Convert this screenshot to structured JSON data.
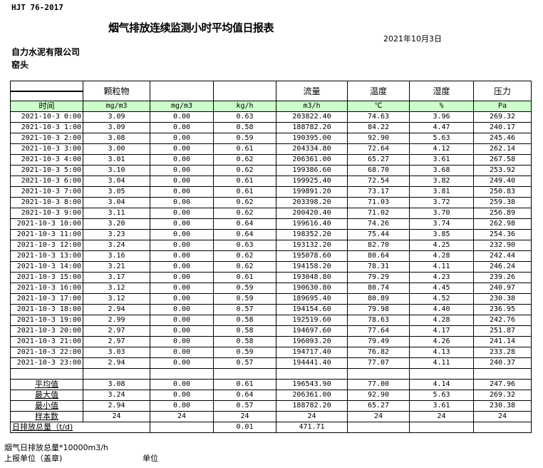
{
  "standard": "HJT  76-2017",
  "title": "烟气排放连续监测小时平均值日报表",
  "date": "2021年10月3日",
  "company": "自力水泥有限公司",
  "location": "窑头",
  "header": [
    "",
    "颗粒物",
    "",
    "",
    "流量",
    "温度",
    "湿度",
    "压力"
  ],
  "units": [
    "时间",
    "mg/m3",
    "mg/m3",
    "kg/h",
    "m3/h",
    "℃",
    "%",
    "Pa"
  ],
  "rows": [
    [
      "2021-10-3 0:00",
      "3.09",
      "0.00",
      "0.63",
      "203822.40",
      "74.63",
      "3.96",
      "269.32"
    ],
    [
      "2021-10-3 1:00",
      "3.09",
      "0.00",
      "0.58",
      "188782.20",
      "84.22",
      "4.47",
      "240.17"
    ],
    [
      "2021-10-3 2:00",
      "3.08",
      "0.00",
      "0.59",
      "190395.00",
      "92.90",
      "5.63",
      "245.46"
    ],
    [
      "2021-10-3 3:00",
      "3.00",
      "0.00",
      "0.61",
      "204334.80",
      "72.64",
      "4.12",
      "262.14"
    ],
    [
      "2021-10-3 4:00",
      "3.01",
      "0.00",
      "0.62",
      "206361.00",
      "65.27",
      "3.61",
      "267.58"
    ],
    [
      "2021-10-3 5:00",
      "3.10",
      "0.00",
      "0.62",
      "199386.60",
      "68.70",
      "3.68",
      "253.92"
    ],
    [
      "2021-10-3 6:00",
      "3.04",
      "0.00",
      "0.61",
      "199925.40",
      "72.54",
      "3.82",
      "249.40"
    ],
    [
      "2021-10-3 7:00",
      "3.05",
      "0.00",
      "0.61",
      "199891.20",
      "73.17",
      "3.81",
      "250.83"
    ],
    [
      "2021-10-3 8:00",
      "3.04",
      "0.00",
      "0.62",
      "203398.20",
      "71.03",
      "3.72",
      "259.38"
    ],
    [
      "2021-10-3 9:00",
      "3.11",
      "0.00",
      "0.62",
      "200420.40",
      "71.02",
      "3.70",
      "256.89"
    ],
    [
      "2021-10-3 10:00",
      "3.20",
      "0.00",
      "0.64",
      "199616.40",
      "74.26",
      "3.74",
      "262.98"
    ],
    [
      "2021-10-3 11:00",
      "3.23",
      "0.00",
      "0.64",
      "198352.20",
      "75.44",
      "3.85",
      "254.36"
    ],
    [
      "2021-10-3 12:00",
      "3.24",
      "0.00",
      "0.63",
      "193132.20",
      "82.70",
      "4.25",
      "232.90"
    ],
    [
      "2021-10-3 13:00",
      "3.16",
      "0.00",
      "0.62",
      "195078.60",
      "80.64",
      "4.28",
      "242.44"
    ],
    [
      "2021-10-3 14:00",
      "3.21",
      "0.00",
      "0.62",
      "194158.20",
      "78.31",
      "4.11",
      "246.24"
    ],
    [
      "2021-10-3 15:00",
      "3.17",
      "0.00",
      "0.61",
      "193048.80",
      "79.29",
      "4.23",
      "239.26"
    ],
    [
      "2021-10-3 16:00",
      "3.12",
      "0.00",
      "0.59",
      "190630.80",
      "80.74",
      "4.45",
      "240.97"
    ],
    [
      "2021-10-3 17:00",
      "3.12",
      "0.00",
      "0.59",
      "189695.40",
      "80.89",
      "4.52",
      "230.38"
    ],
    [
      "2021-10-3 18:00",
      "2.94",
      "0.00",
      "0.57",
      "194154.60",
      "79.98",
      "4.40",
      "236.95"
    ],
    [
      "2021-10-3 19:00",
      "2.99",
      "0.00",
      "0.58",
      "192519.60",
      "78.63",
      "4.28",
      "242.76"
    ],
    [
      "2021-10-3 20:00",
      "2.97",
      "0.00",
      "0.58",
      "194697.60",
      "77.64",
      "4.17",
      "251.87"
    ],
    [
      "2021-10-3 21:00",
      "2.97",
      "0.00",
      "0.58",
      "196093.20",
      "79.49",
      "4.26",
      "241.14"
    ],
    [
      "2021-10-3 22:00",
      "3.03",
      "0.00",
      "0.59",
      "194717.40",
      "76.82",
      "4.13",
      "233.28"
    ],
    [
      "2021-10-3 23:00",
      "2.94",
      "0.00",
      "0.57",
      "194441.40",
      "77.07",
      "4.11",
      "240.37"
    ]
  ],
  "stats": [
    [
      "平均值",
      "3.08",
      "0.00",
      "0.61",
      "196543.90",
      "77.00",
      "4.14",
      "247.96"
    ],
    [
      "最大值",
      "3.24",
      "0.00",
      "0.64",
      "206361.00",
      "92.90",
      "5.63",
      "269.32"
    ],
    [
      "最小值",
      "2.94",
      "0.00",
      "0.57",
      "188782.20",
      "65.27",
      "3.61",
      "230.38"
    ],
    [
      "样本数",
      "24",
      "24",
      "24",
      "24",
      "24",
      "24",
      "24"
    ]
  ],
  "total": {
    "label": "日排放总量（t/d)",
    "kg_h": "0.01",
    "flow": "471.71"
  },
  "footer": {
    "flue_total": "烟气日排放总量*10000m3/h",
    "reporter": "上报单位（盖章)",
    "unit": "单位"
  }
}
